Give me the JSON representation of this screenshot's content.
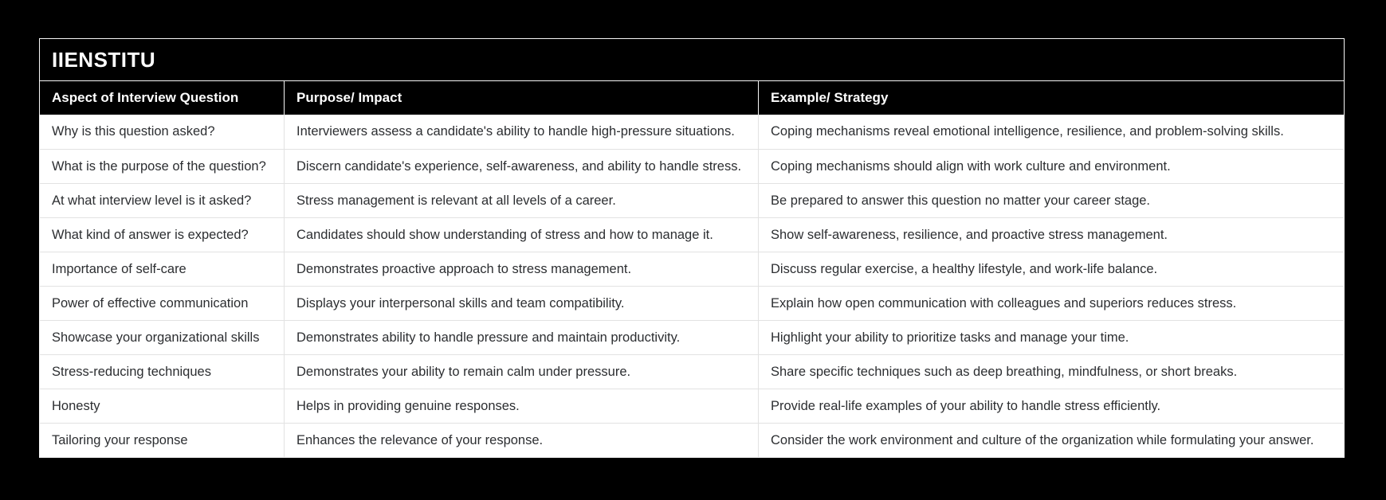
{
  "page": {
    "background_color": "#000000"
  },
  "table": {
    "title": "IIENSTITU",
    "colors": {
      "title_bg": "#000000",
      "title_text": "#ffffff",
      "header_bg": "#000000",
      "header_text": "#ffffff",
      "row_bg": "#ffffff",
      "row_text": "#2c2e31",
      "divider": "#e2e2e2",
      "outer_border": "#f7f7f7"
    },
    "columns": [
      "Aspect of Interview Question",
      "Purpose/ Impact",
      "Example/ Strategy"
    ],
    "rows": [
      [
        "Why is this question asked?",
        "Interviewers assess a candidate's ability to handle high-pressure situations.",
        "Coping mechanisms reveal emotional intelligence, resilience, and problem-solving skills."
      ],
      [
        "What is the purpose of the question?",
        "Discern candidate's experience, self-awareness, and ability to handle stress.",
        "Coping mechanisms should align with work culture and environment."
      ],
      [
        "At what interview level is it asked?",
        "Stress management is relevant at all levels of a career.",
        "Be prepared to answer this question no matter your career stage."
      ],
      [
        "What kind of answer is expected?",
        "Candidates should show understanding of stress and how to manage it.",
        "Show self-awareness, resilience, and proactive stress management."
      ],
      [
        "Importance of self-care",
        "Demonstrates proactive approach to stress management.",
        "Discuss regular exercise, a healthy lifestyle, and work-life balance."
      ],
      [
        "Power of effective communication",
        "Displays your interpersonal skills and team compatibility.",
        "Explain how open communication with colleagues and superiors reduces stress."
      ],
      [
        "Showcase your organizational skills",
        "Demonstrates ability to handle pressure and maintain productivity.",
        "Highlight your ability to prioritize tasks and manage your time."
      ],
      [
        "Stress-reducing techniques",
        "Demonstrates your ability to remain calm under pressure.",
        "Share specific techniques such as deep breathing, mindfulness, or short breaks."
      ],
      [
        "Honesty",
        "Helps in providing genuine responses.",
        "Provide real-life examples of your ability to handle stress efficiently."
      ],
      [
        "Tailoring your response",
        "Enhances the relevance of your response.",
        "Consider the work environment and culture of the organization while formulating your answer."
      ]
    ]
  }
}
